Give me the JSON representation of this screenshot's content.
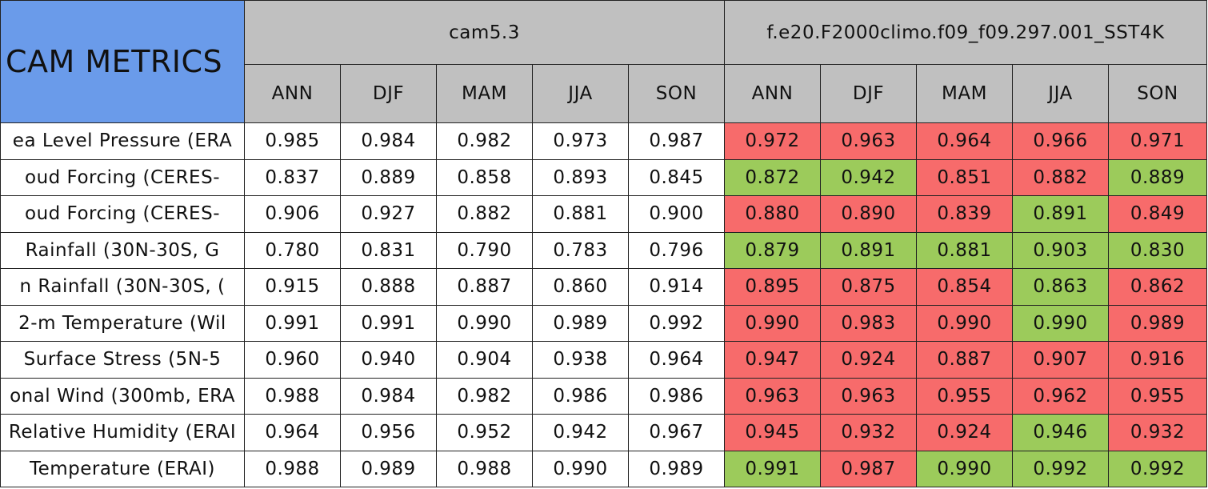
{
  "header": {
    "title": "CAM METRICS",
    "groups": [
      "cam5.3",
      "f.e20.F2000climo.f09_f09.297.001_SST4K"
    ],
    "seasons": [
      [
        "ANN",
        "DJF",
        "MAM",
        "JJA",
        "SON"
      ],
      [
        "ANN",
        "DJF",
        "MAM",
        "JJA",
        "SON"
      ]
    ]
  },
  "rows": [
    {
      "label": "ea Level Pressure (ERA",
      "values": [
        "0.985",
        "0.984",
        "0.982",
        "0.973",
        "0.987",
        "0.972",
        "0.963",
        "0.964",
        "0.966",
        "0.971"
      ],
      "colors": [
        "#f76b6b",
        "#f76b6b",
        "#f76b6b",
        "#f76b6b",
        "#f76b6b"
      ]
    },
    {
      "label": "oud Forcing (CERES-",
      "values": [
        "0.837",
        "0.889",
        "0.858",
        "0.893",
        "0.845",
        "0.872",
        "0.942",
        "0.851",
        "0.882",
        "0.889"
      ],
      "colors": [
        "#9ccb5b",
        "#9ccb5b",
        "#f76b6b",
        "#f76b6b",
        "#9ccb5b"
      ]
    },
    {
      "label": "oud Forcing (CERES-",
      "values": [
        "0.906",
        "0.927",
        "0.882",
        "0.881",
        "0.900",
        "0.880",
        "0.890",
        "0.839",
        "0.891",
        "0.849"
      ],
      "colors": [
        "#f76b6b",
        "#f76b6b",
        "#f76b6b",
        "#9ccb5b",
        "#f76b6b"
      ]
    },
    {
      "label": "Rainfall (30N-30S, G",
      "values": [
        "0.780",
        "0.831",
        "0.790",
        "0.783",
        "0.796",
        "0.879",
        "0.891",
        "0.881",
        "0.903",
        "0.830"
      ],
      "colors": [
        "#9ccb5b",
        "#9ccb5b",
        "#9ccb5b",
        "#9ccb5b",
        "#9ccb5b"
      ]
    },
    {
      "label": "n Rainfall (30N-30S, (",
      "values": [
        "0.915",
        "0.888",
        "0.887",
        "0.860",
        "0.914",
        "0.895",
        "0.875",
        "0.854",
        "0.863",
        "0.862"
      ],
      "colors": [
        "#f76b6b",
        "#f76b6b",
        "#f76b6b",
        "#9ccb5b",
        "#f76b6b"
      ]
    },
    {
      "label": "2-m Temperature (Wil",
      "values": [
        "0.991",
        "0.991",
        "0.990",
        "0.989",
        "0.992",
        "0.990",
        "0.983",
        "0.990",
        "0.990",
        "0.989"
      ],
      "colors": [
        "#f76b6b",
        "#f76b6b",
        "#f76b6b",
        "#9ccb5b",
        "#f76b6b"
      ]
    },
    {
      "label": "Surface Stress (5N-5",
      "values": [
        "0.960",
        "0.940",
        "0.904",
        "0.938",
        "0.964",
        "0.947",
        "0.924",
        "0.887",
        "0.907",
        "0.916"
      ],
      "colors": [
        "#f76b6b",
        "#f76b6b",
        "#f76b6b",
        "#f76b6b",
        "#f76b6b"
      ]
    },
    {
      "label": "onal Wind (300mb, ERA",
      "values": [
        "0.988",
        "0.984",
        "0.982",
        "0.986",
        "0.986",
        "0.963",
        "0.963",
        "0.955",
        "0.962",
        "0.955"
      ],
      "colors": [
        "#f76b6b",
        "#f76b6b",
        "#f76b6b",
        "#f76b6b",
        "#f76b6b"
      ]
    },
    {
      "label": "Relative Humidity (ERAI",
      "values": [
        "0.964",
        "0.956",
        "0.952",
        "0.942",
        "0.967",
        "0.945",
        "0.932",
        "0.924",
        "0.946",
        "0.932"
      ],
      "colors": [
        "#f76b6b",
        "#f76b6b",
        "#f76b6b",
        "#9ccb5b",
        "#f76b6b"
      ]
    },
    {
      "label": "Temperature (ERAI)",
      "values": [
        "0.988",
        "0.989",
        "0.988",
        "0.990",
        "0.989",
        "0.991",
        "0.987",
        "0.990",
        "0.992",
        "0.992"
      ],
      "colors": [
        "#9ccb5b",
        "#f76b6b",
        "#9ccb5b",
        "#9ccb5b",
        "#9ccb5b"
      ]
    }
  ]
}
